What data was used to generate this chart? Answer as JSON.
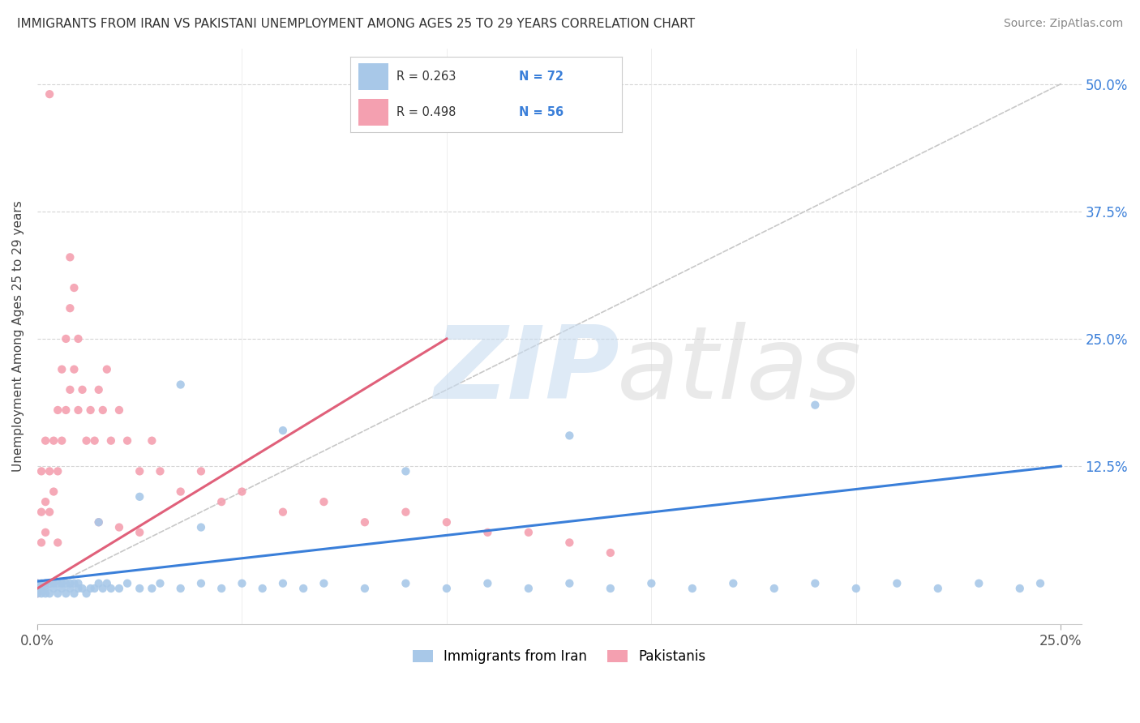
{
  "title": "IMMIGRANTS FROM IRAN VS PAKISTANI UNEMPLOYMENT AMONG AGES 25 TO 29 YEARS CORRELATION CHART",
  "source": "Source: ZipAtlas.com",
  "ylabel": "Unemployment Among Ages 25 to 29 years",
  "xlim": [
    0.0,
    0.255
  ],
  "ylim": [
    -0.03,
    0.535
  ],
  "iran_R": 0.263,
  "iran_N": 72,
  "pak_R": 0.498,
  "pak_N": 56,
  "iran_color": "#a8c8e8",
  "pak_color": "#f4a0b0",
  "iran_line_color": "#3a7fd9",
  "pak_line_color": "#e0607a",
  "diagonal_color": "#c8c8c8",
  "background_color": "#ffffff",
  "yticks": [
    0.0,
    0.125,
    0.25,
    0.375,
    0.5
  ],
  "xticks": [
    0.0,
    0.25
  ],
  "iran_x": [
    0.0,
    0.0,
    0.0,
    0.001,
    0.001,
    0.001,
    0.002,
    0.002,
    0.002,
    0.003,
    0.003,
    0.004,
    0.004,
    0.005,
    0.005,
    0.006,
    0.006,
    0.007,
    0.007,
    0.008,
    0.008,
    0.009,
    0.009,
    0.01,
    0.01,
    0.011,
    0.012,
    0.013,
    0.014,
    0.015,
    0.016,
    0.017,
    0.018,
    0.02,
    0.022,
    0.025,
    0.028,
    0.03,
    0.035,
    0.04,
    0.045,
    0.05,
    0.055,
    0.06,
    0.065,
    0.07,
    0.08,
    0.09,
    0.1,
    0.11,
    0.12,
    0.13,
    0.14,
    0.15,
    0.16,
    0.17,
    0.18,
    0.19,
    0.2,
    0.21,
    0.22,
    0.23,
    0.24,
    0.245,
    0.035,
    0.19,
    0.13,
    0.09,
    0.06,
    0.04,
    0.025,
    0.015
  ],
  "iran_y": [
    0.0,
    0.005,
    0.01,
    0.0,
    0.005,
    0.01,
    0.0,
    0.005,
    0.01,
    0.0,
    0.01,
    0.005,
    0.01,
    0.0,
    0.01,
    0.005,
    0.01,
    0.0,
    0.01,
    0.005,
    0.01,
    0.0,
    0.01,
    0.005,
    0.01,
    0.005,
    0.0,
    0.005,
    0.005,
    0.01,
    0.005,
    0.01,
    0.005,
    0.005,
    0.01,
    0.005,
    0.005,
    0.01,
    0.005,
    0.01,
    0.005,
    0.01,
    0.005,
    0.01,
    0.005,
    0.01,
    0.005,
    0.01,
    0.005,
    0.01,
    0.005,
    0.01,
    0.005,
    0.01,
    0.005,
    0.01,
    0.005,
    0.01,
    0.005,
    0.01,
    0.005,
    0.01,
    0.005,
    0.01,
    0.205,
    0.185,
    0.155,
    0.12,
    0.16,
    0.065,
    0.095,
    0.07
  ],
  "pak_x": [
    0.0,
    0.0,
    0.001,
    0.001,
    0.001,
    0.002,
    0.002,
    0.002,
    0.003,
    0.003,
    0.004,
    0.004,
    0.005,
    0.005,
    0.005,
    0.006,
    0.006,
    0.007,
    0.007,
    0.008,
    0.008,
    0.009,
    0.009,
    0.01,
    0.01,
    0.011,
    0.012,
    0.013,
    0.014,
    0.015,
    0.016,
    0.017,
    0.018,
    0.02,
    0.022,
    0.025,
    0.028,
    0.03,
    0.035,
    0.04,
    0.045,
    0.05,
    0.06,
    0.07,
    0.08,
    0.09,
    0.1,
    0.11,
    0.12,
    0.13,
    0.14,
    0.015,
    0.02,
    0.025,
    0.003,
    0.008
  ],
  "pak_y": [
    0.0,
    0.01,
    0.05,
    0.08,
    0.12,
    0.06,
    0.09,
    0.15,
    0.08,
    0.12,
    0.1,
    0.15,
    0.05,
    0.12,
    0.18,
    0.15,
    0.22,
    0.18,
    0.25,
    0.2,
    0.28,
    0.22,
    0.3,
    0.18,
    0.25,
    0.2,
    0.15,
    0.18,
    0.15,
    0.2,
    0.18,
    0.22,
    0.15,
    0.18,
    0.15,
    0.12,
    0.15,
    0.12,
    0.1,
    0.12,
    0.09,
    0.1,
    0.08,
    0.09,
    0.07,
    0.08,
    0.07,
    0.06,
    0.06,
    0.05,
    0.04,
    0.07,
    0.065,
    0.06,
    0.49,
    0.33
  ]
}
